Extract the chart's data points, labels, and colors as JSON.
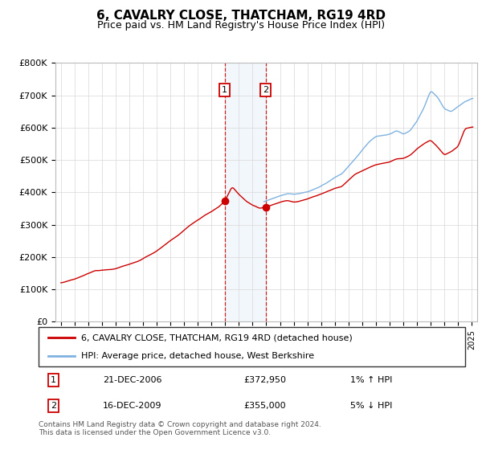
{
  "title": "6, CAVALRY CLOSE, THATCHAM, RG19 4RD",
  "subtitle": "Price paid vs. HM Land Registry's House Price Index (HPI)",
  "legend_line1": "6, CAVALRY CLOSE, THATCHAM, RG19 4RD (detached house)",
  "legend_line2": "HPI: Average price, detached house, West Berkshire",
  "transaction1_label": "1",
  "transaction1_date": "21-DEC-2006",
  "transaction1_price": "£372,950",
  "transaction1_hpi": "1% ↑ HPI",
  "transaction2_label": "2",
  "transaction2_date": "16-DEC-2009",
  "transaction2_price": "£355,000",
  "transaction2_hpi": "5% ↓ HPI",
  "footer": "Contains HM Land Registry data © Crown copyright and database right 2024.\nThis data is licensed under the Open Government Licence v3.0.",
  "red_color": "#cc0000",
  "blue_color": "#7fb2e0",
  "marker_color": "#cc0000",
  "shade_color": "#daeaf7",
  "ylim": [
    0,
    800000
  ],
  "yticks": [
    0,
    100000,
    200000,
    300000,
    400000,
    500000,
    600000,
    700000,
    800000
  ],
  "ytick_labels": [
    "£0",
    "£100K",
    "£200K",
    "£300K",
    "£400K",
    "£500K",
    "£600K",
    "£700K",
    "£800K"
  ],
  "transaction1_x": 2006.96,
  "transaction2_x": 2009.96,
  "transaction1_y": 372950,
  "transaction2_y": 355000,
  "xmin": 1994.6,
  "xmax": 2025.4,
  "red_key_years": [
    1995.0,
    1996.0,
    1997.5,
    1999.0,
    2000.5,
    2002.0,
    2003.5,
    2004.5,
    2005.5,
    2006.5,
    2006.96,
    2007.5,
    2008.0,
    2008.5,
    2009.0,
    2009.5,
    2009.96,
    2010.5,
    2011.0,
    2011.5,
    2012.0,
    2012.5,
    2013.0,
    2013.5,
    2014.0,
    2014.5,
    2015.0,
    2015.5,
    2016.0,
    2016.5,
    2017.0,
    2017.5,
    2018.0,
    2018.5,
    2019.0,
    2019.5,
    2020.0,
    2020.5,
    2021.0,
    2021.5,
    2022.0,
    2022.5,
    2023.0,
    2023.5,
    2024.0,
    2024.5,
    2025.0
  ],
  "red_key_vals": [
    120000,
    130000,
    155000,
    165000,
    185000,
    220000,
    265000,
    300000,
    330000,
    355000,
    372950,
    418000,
    395000,
    375000,
    360000,
    350000,
    355000,
    362000,
    370000,
    375000,
    370000,
    375000,
    380000,
    388000,
    395000,
    405000,
    415000,
    420000,
    440000,
    460000,
    470000,
    480000,
    490000,
    495000,
    500000,
    510000,
    510000,
    520000,
    540000,
    555000,
    565000,
    545000,
    520000,
    530000,
    545000,
    600000,
    605000
  ],
  "blue_key_years": [
    2009.5,
    2010.0,
    2010.5,
    2011.0,
    2011.5,
    2012.0,
    2012.5,
    2013.0,
    2013.5,
    2014.0,
    2014.5,
    2015.0,
    2015.5,
    2016.0,
    2016.5,
    2017.0,
    2017.5,
    2018.0,
    2018.5,
    2019.0,
    2019.5,
    2020.0,
    2020.5,
    2021.0,
    2021.5,
    2022.0,
    2022.5,
    2023.0,
    2023.5,
    2024.0,
    2024.5,
    2025.0
  ],
  "blue_key_vals": [
    365000,
    375000,
    382000,
    390000,
    395000,
    390000,
    395000,
    400000,
    408000,
    418000,
    430000,
    445000,
    455000,
    480000,
    505000,
    530000,
    555000,
    570000,
    575000,
    580000,
    590000,
    580000,
    590000,
    620000,
    660000,
    715000,
    695000,
    660000,
    650000,
    665000,
    680000,
    690000
  ]
}
